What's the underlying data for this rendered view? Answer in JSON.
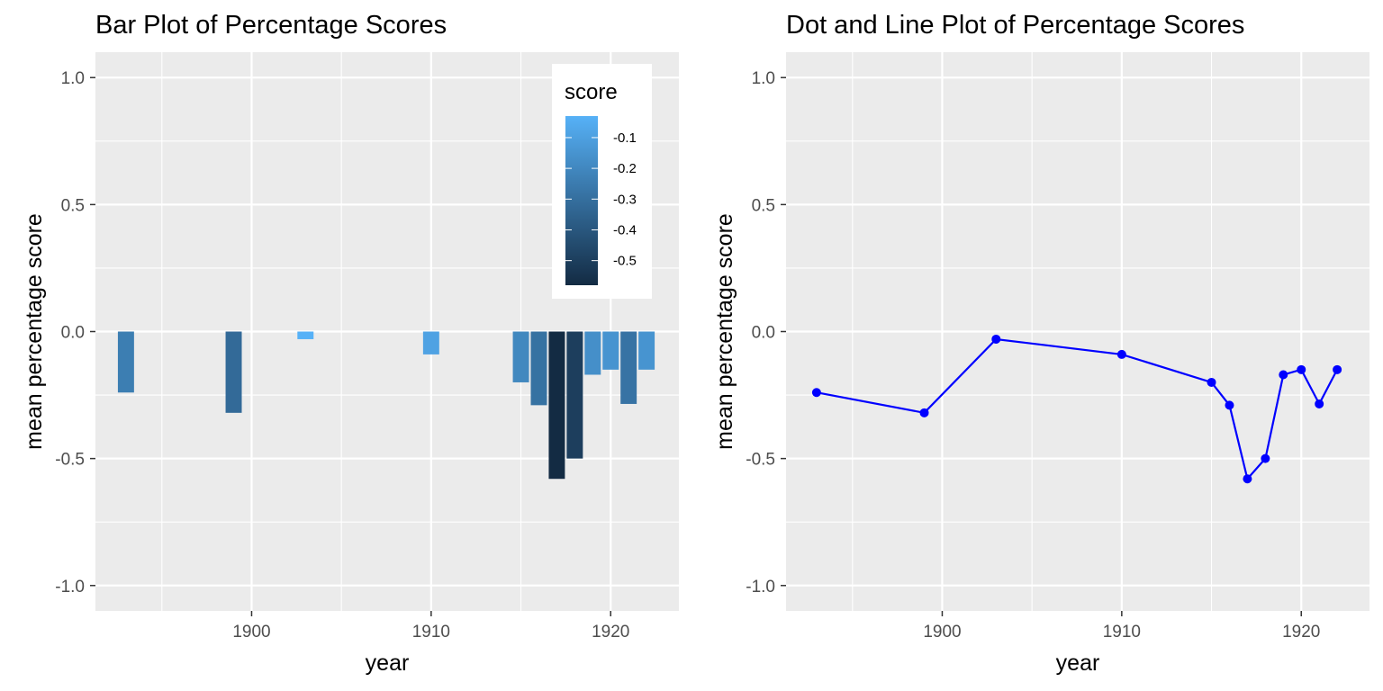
{
  "chart_data": [
    {
      "type": "bar",
      "title": "Bar Plot of Percentage Scores",
      "xlabel": "year",
      "ylabel": "mean percentage score",
      "xlim": [
        1891.3,
        1923.8
      ],
      "ylim": [
        -1.1,
        1.1
      ],
      "x_ticks": [
        1900,
        1910,
        1920
      ],
      "x_tick_labels": [
        "1900",
        "1910",
        "1920"
      ],
      "y_ticks": [
        1.0,
        0.5,
        0.0,
        -0.5,
        -1.0
      ],
      "y_tick_labels": [
        "1.0",
        "0.5",
        "0.0",
        "-0.5",
        "-1.0"
      ],
      "grid": true,
      "x": [
        1893,
        1899,
        1903,
        1910,
        1915,
        1916,
        1917,
        1918,
        1919,
        1920,
        1921,
        1922
      ],
      "values": [
        -0.24,
        -0.32,
        -0.03,
        -0.09,
        -0.2,
        -0.29,
        -0.58,
        -0.5,
        -0.17,
        -0.15,
        -0.285,
        -0.15
      ],
      "fill": "score",
      "legend": {
        "title": "score",
        "position": "top-right",
        "labels": [
          "-0.1",
          "-0.2",
          "-0.3",
          "-0.4",
          "-0.5"
        ],
        "breaks": [
          -0.1,
          -0.2,
          -0.3,
          -0.4,
          -0.5
        ],
        "range": [
          -0.58,
          -0.03
        ],
        "color_low": "#132B43",
        "color_high": "#56B1F7"
      }
    },
    {
      "type": "line",
      "title": "Dot and Line Plot of Percentage Scores",
      "xlabel": "year",
      "ylabel": "mean percentage score",
      "xlim": [
        1891.3,
        1923.8
      ],
      "ylim": [
        -1.1,
        1.1
      ],
      "x_ticks": [
        1900,
        1910,
        1920
      ],
      "x_tick_labels": [
        "1900",
        "1910",
        "1920"
      ],
      "y_ticks": [
        1.0,
        0.5,
        0.0,
        -0.5,
        -1.0
      ],
      "y_tick_labels": [
        "1.0",
        "0.5",
        "0.0",
        "-0.5",
        "-1.0"
      ],
      "grid": true,
      "color": "#0000FF",
      "x": [
        1893,
        1899,
        1903,
        1910,
        1915,
        1916,
        1917,
        1918,
        1919,
        1920,
        1921,
        1922
      ],
      "values": [
        -0.24,
        -0.32,
        -0.03,
        -0.09,
        -0.2,
        -0.29,
        -0.58,
        -0.5,
        -0.17,
        -0.15,
        -0.285,
        -0.15
      ]
    }
  ],
  "colors": {
    "panel_background": "#EBEBEB",
    "grid": "#FFFFFF"
  }
}
